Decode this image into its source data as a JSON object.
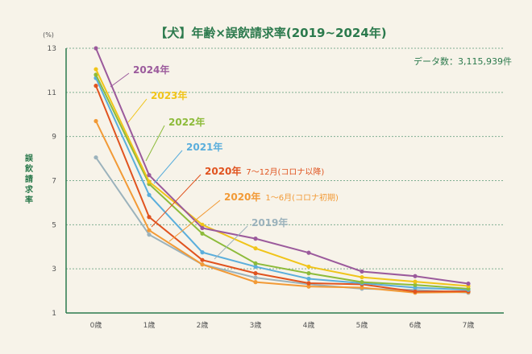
{
  "chart_data": {
    "type": "line",
    "title": "【犬】年齢×誤飲請求率(2019~2024年)",
    "ylabel": "誤飲請求率",
    "yunit": "(%)",
    "data_count": "データ数：3,115,939件",
    "categories": [
      "0歳",
      "1歳",
      "2歳",
      "3歳",
      "4歳",
      "5歳",
      "6歳",
      "7歳"
    ],
    "ylim": [
      1,
      13
    ],
    "yticks": [
      "1",
      "3",
      "5",
      "7",
      "9",
      "11",
      "13"
    ],
    "grid": true,
    "series": [
      {
        "name": "2024年",
        "label_sub": "",
        "color": "#9b5a9c",
        "values": [
          13.0,
          7.25,
          4.85,
          4.37,
          3.73,
          2.88,
          2.67,
          2.33
        ]
      },
      {
        "name": "2023年",
        "label_sub": "",
        "color": "#f0c419",
        "values": [
          12.05,
          6.95,
          5.0,
          3.93,
          3.1,
          2.62,
          2.42,
          2.22
        ]
      },
      {
        "name": "2022年",
        "label_sub": "",
        "color": "#8dbb3a",
        "values": [
          11.8,
          6.85,
          4.6,
          3.25,
          2.8,
          2.4,
          2.27,
          2.1
        ]
      },
      {
        "name": "2021年",
        "label_sub": "",
        "color": "#5aaedc",
        "values": [
          11.65,
          6.35,
          3.75,
          3.1,
          2.55,
          2.35,
          2.15,
          2.05
        ]
      },
      {
        "name": "2020年",
        "label_sub": "7～12月(コロナ以降)",
        "color": "#e0531f",
        "values": [
          11.3,
          5.35,
          3.4,
          2.8,
          2.35,
          2.3,
          1.97,
          1.98
        ]
      },
      {
        "name": "2020年",
        "label_sub": "1～6月(コロナ初期)",
        "color": "#f29a36",
        "values": [
          9.7,
          4.75,
          3.2,
          2.4,
          2.2,
          2.15,
          1.92,
          1.95
        ]
      },
      {
        "name": "2019年",
        "label_sub": "",
        "color": "#9bb2bc",
        "values": [
          8.05,
          4.55,
          3.2,
          2.6,
          2.3,
          2.1,
          2.05,
          1.92
        ]
      }
    ]
  }
}
